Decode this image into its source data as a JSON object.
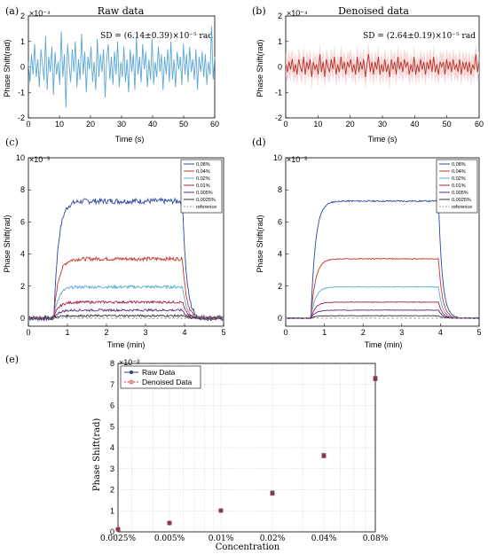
{
  "panels": {
    "a": {
      "letter": "(a)",
      "title": "Raw data",
      "exponent": "×10⁻⁴",
      "annotation": "SD = (6.14±0.39)×10⁻⁵ rad",
      "xlabel": "Time (s)",
      "ylabel": "Phase Shift(rad)"
    },
    "b": {
      "letter": "(b)",
      "title": "Denoised data",
      "exponent": "×10⁻⁴",
      "annotation": "SD = (2.64±0.19)×10⁻⁵ rad",
      "xlabel": "Time (s)",
      "ylabel": "Phase Shift(rad)"
    },
    "c": {
      "letter": "(c)",
      "exponent": "×10⁻³",
      "xlabel": "Time (min)",
      "ylabel": "Phase Shift(rad)"
    },
    "d": {
      "letter": "(d)",
      "exponent": "×10⁻³",
      "xlabel": "Time (min)",
      "ylabel": "Phase Shift(rad)"
    },
    "e": {
      "letter": "(e)",
      "exponent": "×10⁻³",
      "xlabel": "Concentration",
      "ylabel": "Phase Shift(rad)"
    }
  },
  "chart_data": [
    {
      "id": "a",
      "type": "line",
      "title": "Raw data",
      "xlabel": "Time (s)",
      "ylabel": "Phase Shift(rad)",
      "xlim": [
        0,
        60
      ],
      "ylim": [
        -2,
        2
      ],
      "y_scale_factor": "1e-4",
      "xticks": [
        "0",
        "10",
        "20",
        "30",
        "40",
        "50",
        "60"
      ],
      "yticks": [
        "-2",
        "-1",
        "0",
        "1",
        "2"
      ],
      "grid": false,
      "color": "#5ba7d6",
      "series": [
        {
          "values": [
            0.2,
            -0.6,
            0.5,
            -0.3,
            0.9,
            -0.4,
            0.3,
            -0.8,
            0.7,
            0.1,
            -0.5,
            1.2,
            -0.9,
            0.4,
            -0.2,
            0.8,
            -1.1,
            0.6,
            -0.3,
            0.2,
            -0.7,
            1.4,
            -0.4,
            0.5,
            -1.6,
            0.9,
            0.1,
            -0.6,
            0.7,
            -0.2,
            1.0,
            -0.8,
            0.3,
            -0.5,
            1.3,
            -0.3,
            0.6,
            -1.0,
            0.4,
            -0.1,
            0.8,
            -0.6,
            0.2,
            -0.9,
            1.1,
            -0.4,
            0.5,
            -0.2,
            0.7,
            -1.2,
            0.3,
            0.9,
            -0.5,
            0.4,
            -0.7,
            0.6,
            -0.3,
            1.0,
            -0.8,
            0.2,
            -0.4,
            0.8,
            -0.6,
            0.3,
            -1.0,
            0.7,
            -0.2,
            0.5,
            -0.9,
            1.2,
            -0.3,
            0.4,
            -0.6,
            0.9,
            -0.1,
            0.6,
            -0.8,
            0.3,
            -0.5,
            1.1,
            -0.7,
            0.2,
            -0.4,
            0.8,
            -0.2,
            0.5,
            -0.9,
            0.4,
            -0.3,
            0.7,
            -0.6,
            1.0,
            -0.5,
            0.3,
            -0.8,
            0.6,
            -0.1,
            0.4,
            -0.7,
            0.9,
            -0.3,
            0.5,
            -0.6,
            0.8,
            -0.2,
            0.3,
            -0.5,
            0.7,
            -0.9,
            0.4,
            -0.2,
            0.6,
            -0.4,
            0.5,
            -0.7,
            0.2,
            -0.3,
            1.6,
            -0.5,
            0.4
          ]
        }
      ]
    },
    {
      "id": "b",
      "type": "line",
      "title": "Denoised data",
      "xlabel": "Time (s)",
      "ylabel": "Phase Shift(rad)",
      "xlim": [
        0,
        60
      ],
      "ylim": [
        -2,
        2
      ],
      "y_scale_factor": "1e-4",
      "xticks": [
        "0",
        "10",
        "20",
        "30",
        "40",
        "50",
        "60"
      ],
      "yticks": [
        "-2",
        "-1",
        "0",
        "1",
        "2"
      ],
      "grid": false,
      "color": "#b8322a",
      "band_color": "#f3c6c6",
      "series": [
        {
          "values": [
            0.1,
            -0.2,
            0.2,
            -0.1,
            0.3,
            -0.2,
            0.1,
            -0.3,
            0.3,
            0.0,
            -0.2,
            0.4,
            -0.3,
            0.2,
            -0.1,
            0.3,
            -0.4,
            0.2,
            -0.1,
            0.1,
            -0.3,
            0.5,
            -0.2,
            0.2,
            -0.4,
            0.3,
            0.0,
            -0.2,
            0.3,
            -0.1,
            0.4,
            -0.3,
            0.1,
            -0.2,
            0.4,
            -0.1,
            0.2,
            -0.3,
            0.2,
            0.0,
            0.3,
            -0.2,
            0.1,
            -0.3,
            0.4,
            -0.2,
            0.2,
            -0.1,
            0.3,
            -0.4,
            0.1,
            0.5,
            -0.2,
            0.2,
            -0.3,
            0.2,
            -0.1,
            0.4,
            -0.3,
            0.1,
            -0.2,
            0.3,
            -0.2,
            0.1,
            -0.4,
            0.3,
            -0.1,
            0.2,
            -0.3,
            0.4,
            -0.1,
            0.2,
            -0.2,
            0.3,
            0.0,
            0.2,
            -0.3,
            0.1,
            -0.2,
            0.4,
            -0.3,
            0.1,
            -0.2,
            0.3,
            -0.1,
            0.2,
            -0.3,
            0.2,
            -0.1,
            0.3,
            -0.2,
            0.4,
            -0.2,
            0.1,
            -0.3,
            0.2,
            0.0,
            0.2,
            -0.3,
            0.3,
            -0.1,
            0.2,
            -0.2,
            0.3,
            -0.1,
            0.1,
            -0.2,
            0.3,
            -0.3,
            0.2,
            -0.1,
            0.2,
            -0.2,
            0.2,
            -0.3,
            0.1,
            -0.1,
            0.5,
            -0.2,
            0.2
          ]
        }
      ]
    },
    {
      "id": "c",
      "type": "line",
      "xlabel": "Time (min)",
      "ylabel": "Phase Shift(rad)",
      "xlim": [
        0,
        5
      ],
      "ylim": [
        -0.5,
        10
      ],
      "y_scale_factor": "1e-3",
      "xticks": [
        "0",
        "1",
        "2",
        "3",
        "4",
        "5"
      ],
      "yticks": [
        "0",
        "2",
        "4",
        "6",
        "8",
        "10"
      ],
      "grid": false,
      "legend": "top-right",
      "noise": "raw",
      "series": [
        {
          "name": "0.08%",
          "plateau": 7.3,
          "color": "#2a47a3"
        },
        {
          "name": "0.04%",
          "plateau": 3.7,
          "color": "#c0392b"
        },
        {
          "name": "0.02%",
          "plateau": 1.95,
          "color": "#5ba7d6"
        },
        {
          "name": "0.01%",
          "plateau": 1.0,
          "color": "#a0224f"
        },
        {
          "name": "0.005%",
          "plateau": 0.5,
          "color": "#5a2a7a"
        },
        {
          "name": "0.0025%",
          "plateau": 0.15,
          "color": "#333333"
        },
        {
          "name": "reference",
          "plateau": 0.0,
          "color": "#999999",
          "dashed": true
        }
      ]
    },
    {
      "id": "d",
      "type": "line",
      "xlabel": "Time (min)",
      "ylabel": "Phase Shift(rad)",
      "xlim": [
        0,
        5
      ],
      "ylim": [
        -0.5,
        10
      ],
      "y_scale_factor": "1e-3",
      "xticks": [
        "0",
        "1",
        "2",
        "3",
        "4",
        "5"
      ],
      "yticks": [
        "0",
        "2",
        "4",
        "6",
        "8",
        "10"
      ],
      "grid": false,
      "legend": "top-right",
      "noise": "denoised",
      "series": [
        {
          "name": "0.08%",
          "plateau": 7.3,
          "color": "#2a47a3"
        },
        {
          "name": "0.04%",
          "plateau": 3.7,
          "color": "#c0392b"
        },
        {
          "name": "0.02%",
          "plateau": 1.95,
          "color": "#5ba7d6"
        },
        {
          "name": "0.01%",
          "plateau": 1.0,
          "color": "#a0224f"
        },
        {
          "name": "0.005%",
          "plateau": 0.5,
          "color": "#5a2a7a"
        },
        {
          "name": "0.0025%",
          "plateau": 0.15,
          "color": "#333333"
        },
        {
          "name": "reference",
          "plateau": 0.0,
          "color": "#999999",
          "dashed": true
        }
      ]
    },
    {
      "id": "e",
      "type": "scatter",
      "xlabel": "Concentration",
      "ylabel": "Phase Shift(rad)",
      "x_scale": "log",
      "ylim": [
        0,
        8
      ],
      "y_scale_factor": "1e-3",
      "categories": [
        "0.0025%",
        "0.005%",
        "0.01%",
        "0.02%",
        "0.04%",
        "0.08%"
      ],
      "yticks": [
        "0",
        "1",
        "2",
        "3",
        "4",
        "5",
        "6",
        "7",
        "8"
      ],
      "grid": true,
      "legend": "top-left",
      "series": [
        {
          "name": "Raw Data",
          "values": [
            0.12,
            0.42,
            1.01,
            1.84,
            3.62,
            7.28
          ],
          "errors": [
            0.08,
            0.08,
            0.08,
            0.1,
            0.1,
            0.1
          ],
          "color": "#2a3f8f",
          "marker": "filled-circle"
        },
        {
          "name": "Denoised Data",
          "values": [
            0.12,
            0.42,
            1.01,
            1.84,
            3.62,
            7.28
          ],
          "errors": [
            0.06,
            0.06,
            0.06,
            0.08,
            0.08,
            0.08
          ],
          "color": "#c0392b",
          "marker": "open-circle",
          "dashed": true
        }
      ]
    }
  ]
}
